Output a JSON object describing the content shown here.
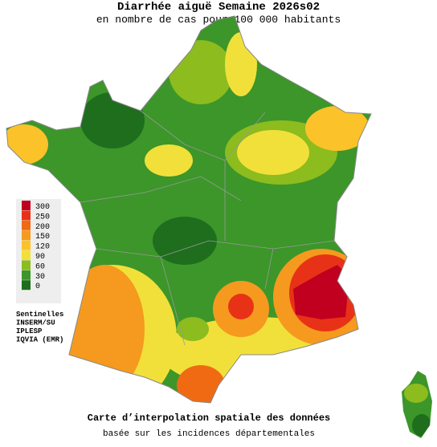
{
  "title": "Diarrhée aiguë Semaine 2026s02",
  "subtitle": "en nombre de cas pour 100 000 habitants",
  "legend": {
    "levels": [
      {
        "value": 300,
        "color": "#c0001e"
      },
      {
        "value": 250,
        "color": "#e83218"
      },
      {
        "value": 200,
        "color": "#f06a14"
      },
      {
        "value": 150,
        "color": "#f59a1e"
      },
      {
        "value": 120,
        "color": "#fbc22a"
      },
      {
        "value": 90,
        "color": "#f2e03a"
      },
      {
        "value": 60,
        "color": "#8cbc1e"
      },
      {
        "value": 30,
        "color": "#3c962a"
      },
      {
        "value": 0,
        "color": "#1e6e1e"
      }
    ]
  },
  "sources": [
    "Sentinelles",
    "INSERM/SU",
    "IPLESP",
    "IQVIA (EMR)"
  ],
  "footer": [
    "Carte d’interpolation spatiale des données",
    "basée sur les incidences départementales"
  ]
}
